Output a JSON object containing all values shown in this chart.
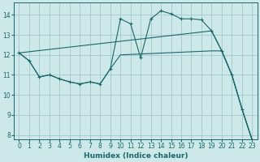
{
  "xlabel": "Humidex (Indice chaleur)",
  "ylabel": "",
  "xlim": [
    -0.5,
    23.5
  ],
  "ylim": [
    7.8,
    14.6
  ],
  "yticks": [
    8,
    9,
    10,
    11,
    12,
    13,
    14
  ],
  "xticks": [
    0,
    1,
    2,
    3,
    4,
    5,
    6,
    7,
    8,
    9,
    10,
    11,
    12,
    13,
    14,
    15,
    16,
    17,
    18,
    19,
    20,
    21,
    22,
    23
  ],
  "bg_color": "#cce8e8",
  "grid_color": "#aacccc",
  "line_color": "#1a6868",
  "lines": [
    {
      "x": [
        0,
        1,
        2,
        3,
        4,
        5,
        6,
        7,
        8,
        9,
        10,
        11,
        12,
        13,
        14,
        15,
        16,
        17,
        18,
        19,
        20,
        21,
        22,
        23
      ],
      "y": [
        12.1,
        11.7,
        10.9,
        11.0,
        10.8,
        10.65,
        10.55,
        10.65,
        10.55,
        11.3,
        13.8,
        13.55,
        11.85,
        13.8,
        14.2,
        14.05,
        13.8,
        13.8,
        13.75,
        13.2,
        12.2,
        11.0,
        9.3,
        7.75
      ],
      "markers": true
    },
    {
      "x": [
        0,
        19,
        20,
        21,
        22,
        23
      ],
      "y": [
        12.1,
        13.2,
        12.2,
        11.0,
        9.3,
        7.75
      ],
      "markers": false
    },
    {
      "x": [
        0,
        1,
        2,
        3,
        4,
        5,
        6,
        7,
        8,
        9,
        10,
        19,
        20,
        21,
        22,
        23
      ],
      "y": [
        12.1,
        11.7,
        10.9,
        11.0,
        10.8,
        10.65,
        10.55,
        10.65,
        10.55,
        11.3,
        12.0,
        12.2,
        12.2,
        11.0,
        9.3,
        7.75
      ],
      "markers": false
    }
  ]
}
